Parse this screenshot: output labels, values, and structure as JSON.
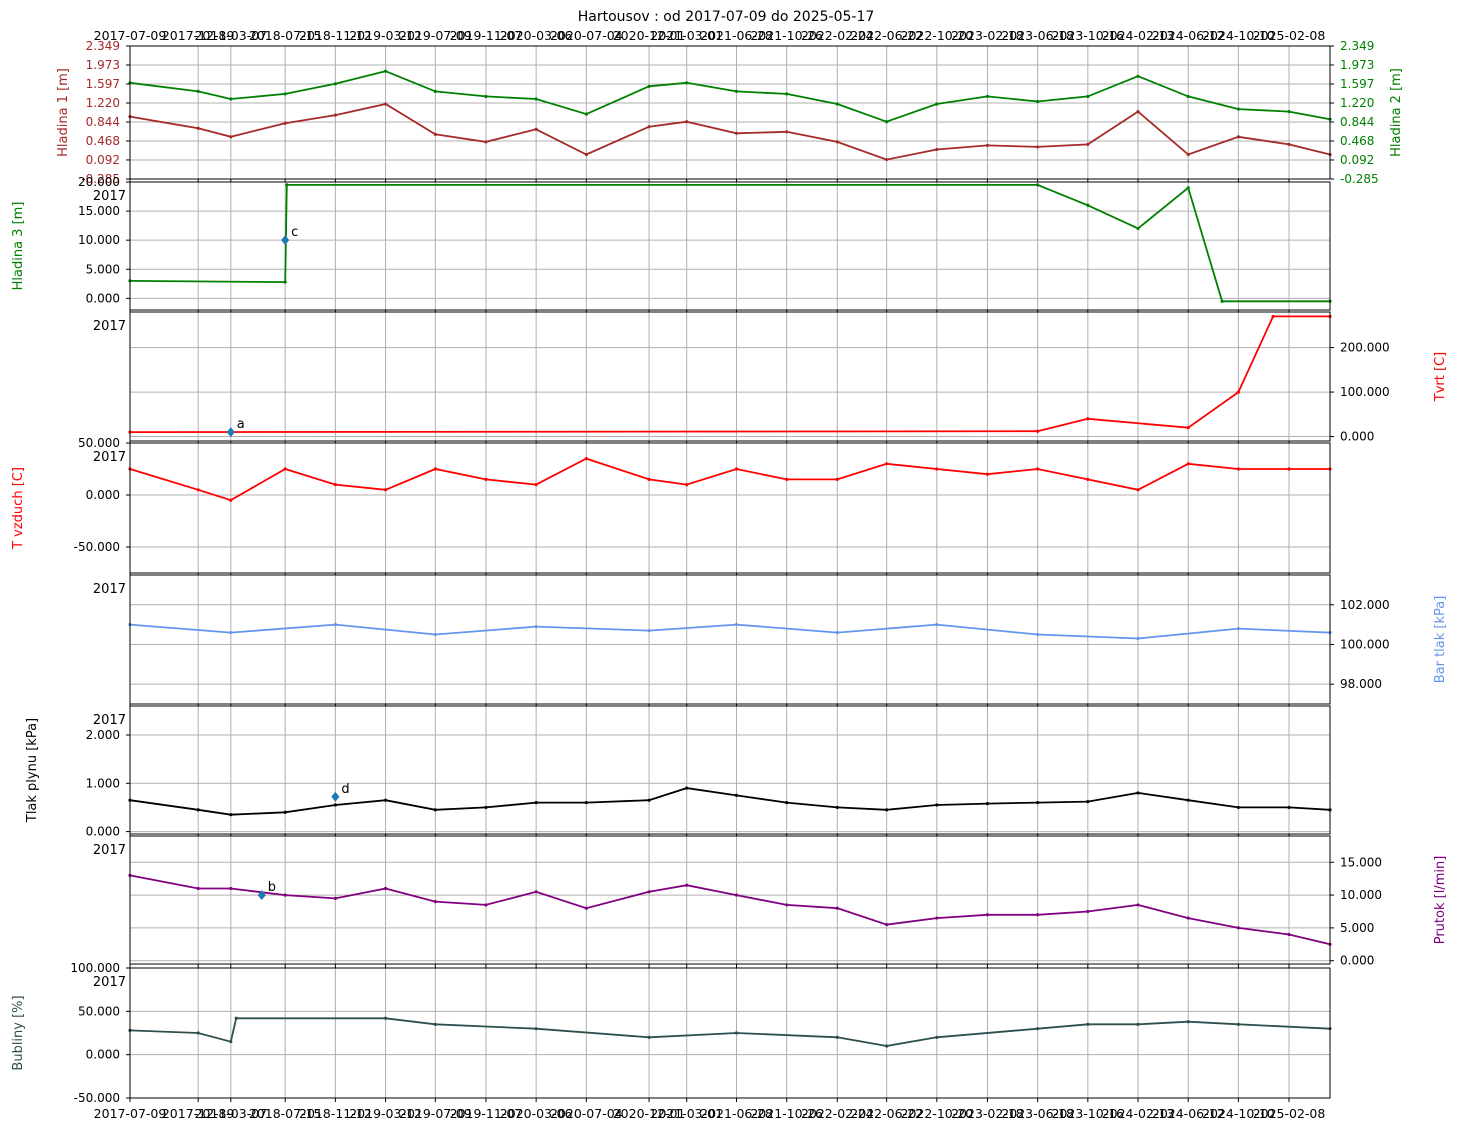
{
  "title": "Hartousov : od 2017-07-09 do 2025-05-17",
  "x_tick_labels": [
    "2017-07-09",
    "2017-12-19",
    "2018-03-07",
    "2018-07-15",
    "2018-11-12",
    "2019-03-12",
    "2019-07-09",
    "2019-11-07",
    "2020-03-06",
    "2020-07-04",
    "2020-12-01",
    "2021-03-01",
    "2021-06-28",
    "2021-10-26",
    "2022-02-24",
    "2022-06-22",
    "2022-10-20",
    "2023-02-18",
    "2023-06-18",
    "2023-10-16",
    "2024-02-13",
    "2024-06-12",
    "2024-10-10",
    "2025-02-08"
  ],
  "year_label": "2017",
  "colors": {
    "hladina1": "#a52a2a",
    "green": "#008000",
    "red": "#ff0000",
    "blue": "#6495ed",
    "black": "#000000",
    "purple": "#800080",
    "slate": "#2f4f4f",
    "grid": "#b0b0b0",
    "marker": "#1f77b4"
  },
  "chart_data": [
    {
      "type": "line",
      "name": "hladina",
      "x_range": [
        "2017-07-09",
        "2025-05-17"
      ],
      "left_axis": {
        "label": "Hladina 1 [m]",
        "ticks": [
          "2.349",
          "1.973",
          "1.597",
          "1.220",
          "0.844",
          "0.468",
          "0.092",
          "-0.285"
        ],
        "range": [
          -0.285,
          2.349
        ]
      },
      "right_axis": {
        "label": "Hladina 2 [m]",
        "ticks": [
          "2.349",
          "1.973",
          "1.597",
          "1.220",
          "0.844",
          "0.468",
          "0.092",
          "-0.285"
        ],
        "range": [
          -0.285,
          2.349
        ]
      },
      "series": [
        {
          "name": "Hladina 1 [m]",
          "color": "#a52a2a",
          "points": [
            [
              "2017-07-09",
              0.95
            ],
            [
              "2017-12-19",
              0.72
            ],
            [
              "2018-03-07",
              0.55
            ],
            [
              "2018-07-15",
              0.82
            ],
            [
              "2018-11-12",
              0.98
            ],
            [
              "2019-03-12",
              1.2
            ],
            [
              "2019-07-09",
              0.6
            ],
            [
              "2019-11-07",
              0.45
            ],
            [
              "2020-03-06",
              0.7
            ],
            [
              "2020-07-04",
              0.2
            ],
            [
              "2020-12-01",
              0.75
            ],
            [
              "2021-03-01",
              0.85
            ],
            [
              "2021-06-28",
              0.62
            ],
            [
              "2021-10-26",
              0.65
            ],
            [
              "2022-02-24",
              0.45
            ],
            [
              "2022-06-22",
              0.1
            ],
            [
              "2022-10-20",
              0.3
            ],
            [
              "2023-02-18",
              0.38
            ],
            [
              "2023-06-18",
              0.35
            ],
            [
              "2023-10-16",
              0.4
            ],
            [
              "2024-02-13",
              1.05
            ],
            [
              "2024-06-12",
              0.2
            ],
            [
              "2024-10-10",
              0.55
            ],
            [
              "2025-02-08",
              0.4
            ],
            [
              "2025-05-17",
              0.2
            ]
          ]
        },
        {
          "name": "Hladina 2 [m]",
          "color": "#008000",
          "points": [
            [
              "2017-07-09",
              1.62
            ],
            [
              "2017-12-19",
              1.45
            ],
            [
              "2018-03-07",
              1.3
            ],
            [
              "2018-07-15",
              1.4
            ],
            [
              "2018-11-12",
              1.6
            ],
            [
              "2019-03-12",
              1.85
            ],
            [
              "2019-07-09",
              1.45
            ],
            [
              "2019-11-07",
              1.35
            ],
            [
              "2020-03-06",
              1.3
            ],
            [
              "2020-07-04",
              1.0
            ],
            [
              "2020-12-01",
              1.55
            ],
            [
              "2021-03-01",
              1.62
            ],
            [
              "2021-06-28",
              1.45
            ],
            [
              "2021-10-26",
              1.4
            ],
            [
              "2022-02-24",
              1.2
            ],
            [
              "2022-06-22",
              0.85
            ],
            [
              "2022-10-20",
              1.2
            ],
            [
              "2023-02-18",
              1.35
            ],
            [
              "2023-06-18",
              1.25
            ],
            [
              "2023-10-16",
              1.35
            ],
            [
              "2024-02-13",
              1.75
            ],
            [
              "2024-06-12",
              1.35
            ],
            [
              "2024-10-10",
              1.1
            ],
            [
              "2025-02-08",
              1.05
            ],
            [
              "2025-05-17",
              0.9
            ]
          ]
        }
      ]
    },
    {
      "type": "line",
      "name": "hladina3",
      "left_axis": {
        "label": "Hladina 3 [m]",
        "ticks": [
          "20.000",
          "15.000",
          "10.000",
          "5.000",
          "0.000"
        ],
        "range": [
          -2,
          20
        ]
      },
      "series": [
        {
          "name": "Hladina 3 [m]",
          "color": "#008000",
          "points": [
            [
              "2017-07-09",
              3.0
            ],
            [
              "2018-07-15",
              2.8
            ],
            [
              "2018-07-19",
              19.5
            ],
            [
              "2023-06-18",
              19.5
            ],
            [
              "2023-10-16",
              16.0
            ],
            [
              "2024-02-13",
              12.0
            ],
            [
              "2024-06-12",
              19.0
            ],
            [
              "2024-09-01",
              -0.5
            ],
            [
              "2025-05-17",
              -0.5
            ]
          ]
        }
      ],
      "annotations": [
        {
          "label": "c",
          "x": "2018-07-15",
          "y": 10.0
        }
      ]
    },
    {
      "type": "line",
      "name": "tvrt",
      "right_axis": {
        "label": "Tvrt [C]",
        "ticks": [
          "200.000",
          "100.000",
          "0.000"
        ],
        "range": [
          -10,
          280
        ]
      },
      "series": [
        {
          "name": "Tvrt [C]",
          "color": "#ff0000",
          "points": [
            [
              "2017-07-09",
              10
            ],
            [
              "2023-06-18",
              12
            ],
            [
              "2023-10-16",
              40
            ],
            [
              "2024-06-12",
              20
            ],
            [
              "2024-10-10",
              100
            ],
            [
              "2025-01-01",
              270
            ],
            [
              "2025-05-17",
              270
            ]
          ]
        }
      ],
      "annotations": [
        {
          "label": "a",
          "x": "2018-03-07",
          "y": 10
        }
      ]
    },
    {
      "type": "line",
      "name": "tvzduch",
      "left_axis": {
        "label": "T vzduch [C]",
        "ticks": [
          "50.000",
          "0.000",
          "-50.000"
        ],
        "range": [
          -75,
          50
        ]
      },
      "series": [
        {
          "name": "T vzduch [C]",
          "color": "#ff0000",
          "points": [
            [
              "2017-07-09",
              25
            ],
            [
              "2017-12-19",
              5
            ],
            [
              "2018-03-07",
              -5
            ],
            [
              "2018-07-15",
              25
            ],
            [
              "2018-11-12",
              10
            ],
            [
              "2019-03-12",
              5
            ],
            [
              "2019-07-09",
              25
            ],
            [
              "2019-11-07",
              15
            ],
            [
              "2020-03-06",
              10
            ],
            [
              "2020-07-04",
              35
            ],
            [
              "2020-12-01",
              15
            ],
            [
              "2021-03-01",
              10
            ],
            [
              "2021-06-28",
              25
            ],
            [
              "2021-10-26",
              15
            ],
            [
              "2022-02-24",
              15
            ],
            [
              "2022-06-22",
              30
            ],
            [
              "2022-10-20",
              25
            ],
            [
              "2023-02-18",
              20
            ],
            [
              "2023-06-18",
              25
            ],
            [
              "2023-10-16",
              15
            ],
            [
              "2024-02-13",
              5
            ],
            [
              "2024-06-12",
              30
            ],
            [
              "2024-10-10",
              25
            ],
            [
              "2025-02-08",
              25
            ],
            [
              "2025-05-17",
              25
            ]
          ]
        }
      ]
    },
    {
      "type": "line",
      "name": "bartlak",
      "right_axis": {
        "label": "Bar tlak [kPa]",
        "ticks": [
          "102.000",
          "100.000",
          "98.000"
        ],
        "range": [
          97,
          103.5
        ]
      },
      "series": [
        {
          "name": "Bar tlak [kPa]",
          "color": "#6495ed",
          "points": [
            [
              "2017-07-09",
              101.0
            ],
            [
              "2018-03-07",
              100.6
            ],
            [
              "2018-11-12",
              101.0
            ],
            [
              "2019-07-09",
              100.5
            ],
            [
              "2020-03-06",
              100.9
            ],
            [
              "2020-12-01",
              100.7
            ],
            [
              "2021-06-28",
              101.0
            ],
            [
              "2022-02-24",
              100.6
            ],
            [
              "2022-10-20",
              101.0
            ],
            [
              "2023-06-18",
              100.5
            ],
            [
              "2024-02-13",
              100.3
            ],
            [
              "2024-10-10",
              100.8
            ],
            [
              "2025-05-17",
              100.6
            ]
          ]
        }
      ]
    },
    {
      "type": "line",
      "name": "tlakplynu",
      "left_axis": {
        "label": "Tlak plynu [kPa]",
        "ticks": [
          "2.000",
          "1.000",
          "0.000"
        ],
        "range": [
          -0.05,
          2.6
        ]
      },
      "series": [
        {
          "name": "Tlak plynu [kPa]",
          "color": "#000000",
          "points": [
            [
              "2017-07-09",
              0.65
            ],
            [
              "2017-12-19",
              0.45
            ],
            [
              "2018-03-07",
              0.35
            ],
            [
              "2018-07-15",
              0.4
            ],
            [
              "2018-11-12",
              0.55
            ],
            [
              "2019-03-12",
              0.65
            ],
            [
              "2019-07-09",
              0.45
            ],
            [
              "2019-11-07",
              0.5
            ],
            [
              "2020-03-06",
              0.6
            ],
            [
              "2020-07-04",
              0.6
            ],
            [
              "2020-12-01",
              0.65
            ],
            [
              "2021-03-01",
              0.9
            ],
            [
              "2021-06-28",
              0.75
            ],
            [
              "2021-10-26",
              0.6
            ],
            [
              "2022-02-24",
              0.5
            ],
            [
              "2022-06-22",
              0.45
            ],
            [
              "2022-10-20",
              0.55
            ],
            [
              "2023-02-18",
              0.58
            ],
            [
              "2023-06-18",
              0.6
            ],
            [
              "2023-10-16",
              0.62
            ],
            [
              "2024-02-13",
              0.8
            ],
            [
              "2024-06-12",
              0.65
            ],
            [
              "2024-10-10",
              0.5
            ],
            [
              "2025-02-08",
              0.5
            ],
            [
              "2025-05-17",
              0.45
            ]
          ]
        }
      ],
      "annotations": [
        {
          "label": "d",
          "x": "2018-11-12",
          "y": 0.72
        }
      ]
    },
    {
      "type": "line",
      "name": "prutok",
      "right_axis": {
        "label": "Prutok [l/min]",
        "ticks": [
          "15.000",
          "10.000",
          "5.000",
          "0.000"
        ],
        "range": [
          -0.5,
          19
        ]
      },
      "series": [
        {
          "name": "Prutok [l/min]",
          "color": "#800080",
          "points": [
            [
              "2017-07-09",
              13.0
            ],
            [
              "2017-12-19",
              11.0
            ],
            [
              "2018-03-07",
              11.0
            ],
            [
              "2018-07-15",
              10.0
            ],
            [
              "2018-11-12",
              9.5
            ],
            [
              "2019-03-12",
              11.0
            ],
            [
              "2019-07-09",
              9.0
            ],
            [
              "2019-11-07",
              8.5
            ],
            [
              "2020-03-06",
              10.5
            ],
            [
              "2020-07-04",
              8.0
            ],
            [
              "2020-12-01",
              10.5
            ],
            [
              "2021-03-01",
              11.5
            ],
            [
              "2021-06-28",
              10.0
            ],
            [
              "2021-10-26",
              8.5
            ],
            [
              "2022-02-24",
              8.0
            ],
            [
              "2022-06-22",
              5.5
            ],
            [
              "2022-10-20",
              6.5
            ],
            [
              "2023-02-18",
              7.0
            ],
            [
              "2023-06-18",
              7.0
            ],
            [
              "2023-10-16",
              7.5
            ],
            [
              "2024-02-13",
              8.5
            ],
            [
              "2024-06-12",
              6.5
            ],
            [
              "2024-10-10",
              5.0
            ],
            [
              "2025-02-08",
              4.0
            ],
            [
              "2025-05-17",
              2.5
            ]
          ]
        }
      ],
      "annotations": [
        {
          "label": "b",
          "x": "2018-05-20",
          "y": 10.0
        }
      ]
    },
    {
      "type": "line",
      "name": "bubliny",
      "left_axis": {
        "label": "Bubliny [%]",
        "ticks": [
          "100.000",
          "50.000",
          "0.000",
          "-50.000"
        ],
        "range": [
          -50,
          100
        ]
      },
      "series": [
        {
          "name": "Bubliny [%]",
          "color": "#2f4f4f",
          "points": [
            [
              "2017-07-09",
              28
            ],
            [
              "2017-12-19",
              25
            ],
            [
              "2018-03-07",
              15
            ],
            [
              "2018-03-20",
              42
            ],
            [
              "2019-03-12",
              42
            ],
            [
              "2019-07-09",
              35
            ],
            [
              "2020-03-06",
              30
            ],
            [
              "2020-12-01",
              20
            ],
            [
              "2021-06-28",
              25
            ],
            [
              "2022-02-24",
              20
            ],
            [
              "2022-06-22",
              10
            ],
            [
              "2022-10-20",
              20
            ],
            [
              "2023-06-18",
              30
            ],
            [
              "2023-10-16",
              35
            ],
            [
              "2024-02-13",
              35
            ],
            [
              "2024-06-12",
              38
            ],
            [
              "2024-10-10",
              35
            ],
            [
              "2025-05-17",
              30
            ]
          ]
        }
      ]
    }
  ]
}
